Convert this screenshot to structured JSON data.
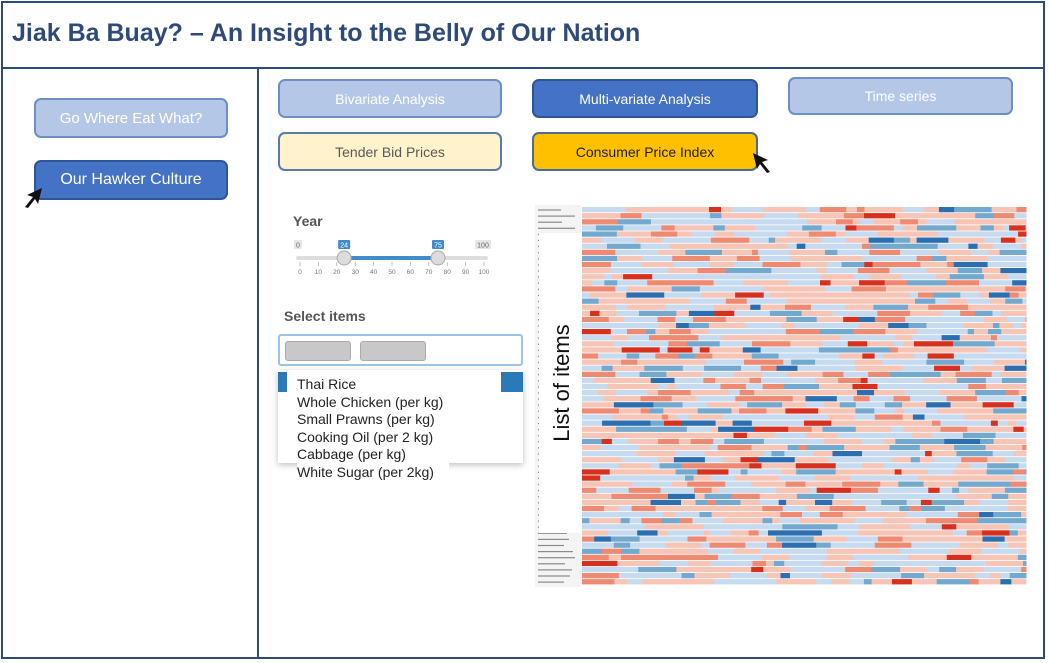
{
  "header": {
    "title": "Jiak Ba Buay? – An Insight to the Belly of Our Nation"
  },
  "sidebar": {
    "items": [
      {
        "label": "Go Where Eat What?",
        "state": "inactive"
      },
      {
        "label": "Our Hawker Culture",
        "state": "active"
      }
    ]
  },
  "tabs": [
    {
      "label": "Bivariate Analysis",
      "state": "inactive"
    },
    {
      "label": "Multi-variate Analysis",
      "state": "active"
    },
    {
      "label": "Time series",
      "state": "inactive"
    },
    {
      "label": "Tender Bid Prices",
      "state": "inactive"
    },
    {
      "label": "Consumer Price Index",
      "state": "selected"
    }
  ],
  "year_filter": {
    "label": "Year",
    "min": "0",
    "max": "100",
    "low": "24",
    "high": "75",
    "low_fraction": 0.24,
    "high_fraction": 0.75,
    "ticks": [
      "0",
      "10",
      "20",
      "30",
      "40",
      "50",
      "60",
      "70",
      "80",
      "90",
      "100"
    ]
  },
  "select_items": {
    "label": "Select items",
    "options": [
      "Thai Rice",
      "Whole Chicken (per kg)",
      "Small Prawns (per kg)",
      "Cooking Oil (per 2 kg)",
      "Cabbage (per kg)",
      "White Sugar (per 2kg)"
    ]
  },
  "heatmap": {
    "axis_label": "List of items"
  },
  "colors": {
    "accent_blue": "#4472c4",
    "light_blue": "#b4c7e7",
    "cream": "#fff2cc",
    "orange": "#ffc000",
    "heat_red": "#d7191c",
    "heat_blue": "#2c7bb6"
  }
}
